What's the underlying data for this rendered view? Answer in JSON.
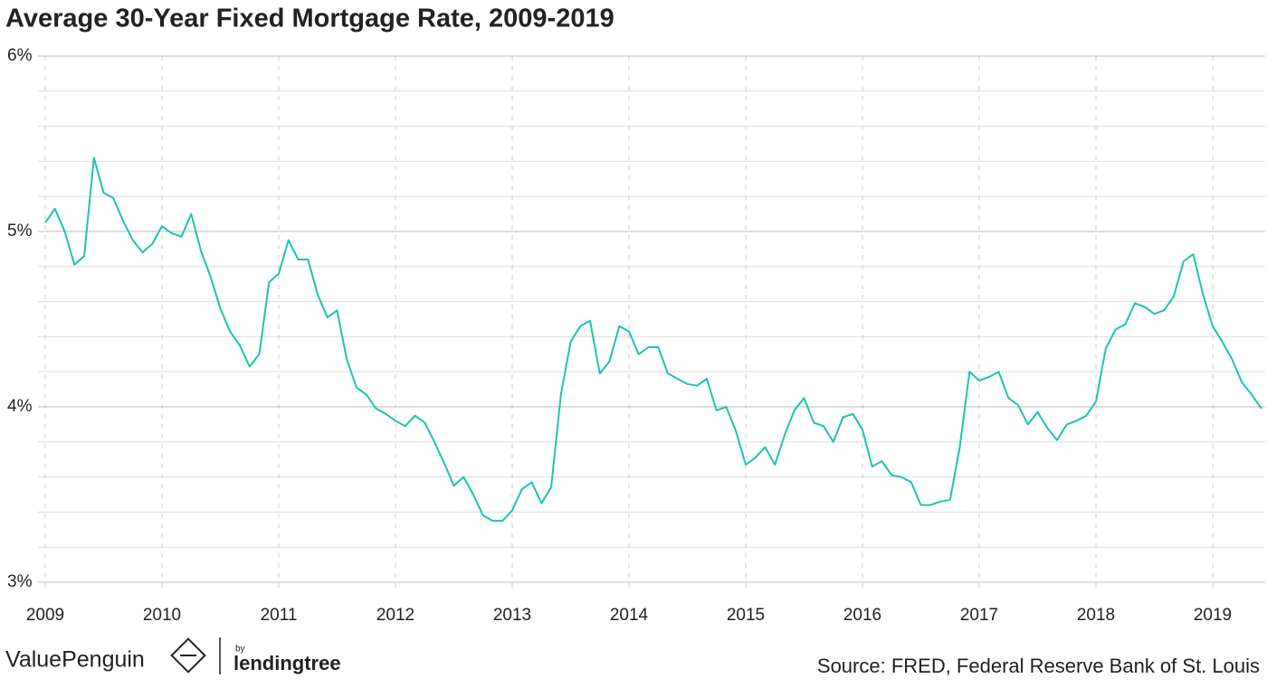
{
  "chart_data": {
    "type": "line",
    "title": "Average 30-Year Fixed Mortgage Rate, 2009-2019",
    "source": "Source: FRED, Federal Reserve Bank of St. Louis",
    "brand": {
      "name": "ValuePenguin",
      "by": "by",
      "partner": "lendingtree"
    },
    "color": "#1cc4ae",
    "grid": true,
    "xlim": [
      2009,
      2019.45
    ],
    "xticks": [
      2009,
      2010,
      2011,
      2012,
      2013,
      2014,
      2015,
      2016,
      2017,
      2018,
      2019
    ],
    "ylim": [
      3,
      6
    ],
    "yticks": [
      {
        "value": 3,
        "label": "3%"
      },
      {
        "value": 4,
        "label": "4%"
      },
      {
        "value": 5,
        "label": "5%"
      },
      {
        "value": 6,
        "label": "6%"
      }
    ],
    "yminor": [
      3.2,
      3.4,
      3.6,
      3.8,
      4.2,
      4.4,
      4.6,
      4.8,
      5.2,
      5.4,
      5.6,
      5.8
    ],
    "x": [
      2009,
      2009.083,
      2009.167,
      2009.25,
      2009.333,
      2009.417,
      2009.5,
      2009.583,
      2009.667,
      2009.75,
      2009.833,
      2009.917,
      2010,
      2010.083,
      2010.167,
      2010.25,
      2010.333,
      2010.417,
      2010.5,
      2010.583,
      2010.667,
      2010.75,
      2010.833,
      2010.917,
      2011,
      2011.083,
      2011.167,
      2011.25,
      2011.333,
      2011.417,
      2011.5,
      2011.583,
      2011.667,
      2011.75,
      2011.833,
      2011.917,
      2012,
      2012.083,
      2012.167,
      2012.25,
      2012.333,
      2012.417,
      2012.5,
      2012.583,
      2012.667,
      2012.75,
      2012.833,
      2012.917,
      2013,
      2013.083,
      2013.167,
      2013.25,
      2013.333,
      2013.417,
      2013.5,
      2013.583,
      2013.667,
      2013.75,
      2013.833,
      2013.917,
      2014,
      2014.083,
      2014.167,
      2014.25,
      2014.333,
      2014.417,
      2014.5,
      2014.583,
      2014.667,
      2014.75,
      2014.833,
      2014.917,
      2015,
      2015.083,
      2015.167,
      2015.25,
      2015.333,
      2015.417,
      2015.5,
      2015.583,
      2015.667,
      2015.75,
      2015.833,
      2015.917,
      2016,
      2016.083,
      2016.167,
      2016.25,
      2016.333,
      2016.417,
      2016.5,
      2016.583,
      2016.667,
      2016.75,
      2016.833,
      2016.917,
      2017,
      2017.083,
      2017.167,
      2017.25,
      2017.333,
      2017.417,
      2017.5,
      2017.583,
      2017.667,
      2017.75,
      2017.833,
      2017.917,
      2018,
      2018.083,
      2018.167,
      2018.25,
      2018.333,
      2018.417,
      2018.5,
      2018.583,
      2018.667,
      2018.75,
      2018.833,
      2018.917,
      2019,
      2019.083,
      2019.167,
      2019.25,
      2019.333,
      2019.417
    ],
    "values": [
      5.05,
      5.13,
      5.0,
      4.81,
      4.86,
      5.42,
      5.22,
      5.19,
      5.06,
      4.95,
      4.88,
      4.93,
      5.03,
      4.99,
      4.97,
      5.1,
      4.89,
      4.74,
      4.56,
      4.43,
      4.35,
      4.23,
      4.3,
      4.71,
      4.76,
      4.95,
      4.84,
      4.84,
      4.64,
      4.51,
      4.55,
      4.27,
      4.11,
      4.07,
      3.99,
      3.96,
      3.92,
      3.89,
      3.95,
      3.91,
      3.8,
      3.68,
      3.55,
      3.6,
      3.5,
      3.38,
      3.35,
      3.35,
      3.41,
      3.53,
      3.57,
      3.45,
      3.54,
      4.07,
      4.37,
      4.46,
      4.49,
      4.19,
      4.26,
      4.46,
      4.43,
      4.3,
      4.34,
      4.34,
      4.19,
      4.16,
      4.13,
      4.12,
      4.16,
      3.98,
      4.0,
      3.86,
      3.67,
      3.71,
      3.77,
      3.67,
      3.84,
      3.98,
      4.05,
      3.91,
      3.89,
      3.8,
      3.94,
      3.96,
      3.87,
      3.66,
      3.69,
      3.61,
      3.6,
      3.57,
      3.44,
      3.44,
      3.46,
      3.47,
      3.77,
      4.2,
      4.15,
      4.17,
      4.2,
      4.05,
      4.01,
      3.9,
      3.97,
      3.88,
      3.81,
      3.9,
      3.92,
      3.95,
      4.03,
      4.33,
      4.44,
      4.47,
      4.59,
      4.57,
      4.53,
      4.55,
      4.63,
      4.83,
      4.87,
      4.64,
      4.46,
      4.37,
      4.27,
      4.14,
      4.07,
      3.99
    ]
  }
}
